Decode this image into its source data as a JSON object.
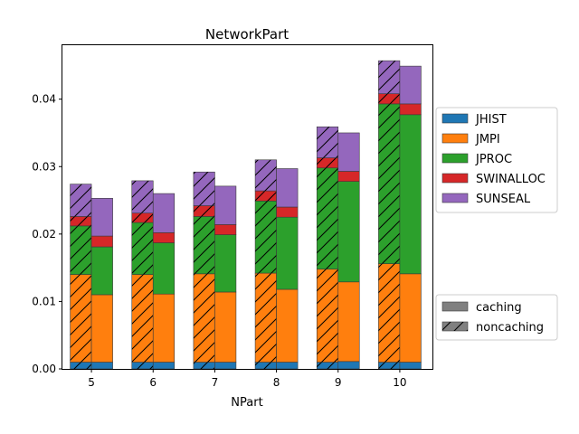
{
  "chart_data": {
    "type": "bar",
    "stacked": true,
    "grouped": true,
    "title": "NetworkPart",
    "xlabel": "NPart",
    "ylabel": "",
    "categories": [
      "5",
      "6",
      "7",
      "8",
      "9",
      "10"
    ],
    "ylim": [
      0,
      0.048
    ],
    "yticks": [
      "0.00",
      "0.01",
      "0.02",
      "0.03",
      "0.04"
    ],
    "legend_placement": "right, outside plot",
    "groups": [
      {
        "name": "noncaching",
        "hatched": true,
        "series": [
          {
            "name": "JHIST",
            "values": [
              0.001,
              0.001,
              0.001,
              0.001,
              0.001,
              0.001
            ]
          },
          {
            "name": "JMPI",
            "values": [
              0.013,
              0.013,
              0.0131,
              0.0132,
              0.0138,
              0.0146
            ]
          },
          {
            "name": "JPROC",
            "values": [
              0.0072,
              0.0077,
              0.0085,
              0.0107,
              0.015,
              0.0237
            ]
          },
          {
            "name": "SWINALLOC",
            "values": [
              0.0014,
              0.0014,
              0.0016,
              0.0015,
              0.0015,
              0.0015
            ]
          },
          {
            "name": "SUNSEAL",
            "values": [
              0.0048,
              0.0048,
              0.005,
              0.0046,
              0.0046,
              0.0049
            ]
          }
        ]
      },
      {
        "name": "caching",
        "hatched": false,
        "series": [
          {
            "name": "JHIST",
            "values": [
              0.001,
              0.001,
              0.001,
              0.001,
              0.0011,
              0.001
            ]
          },
          {
            "name": "JMPI",
            "values": [
              0.01,
              0.0101,
              0.0104,
              0.0108,
              0.0118,
              0.0131
            ]
          },
          {
            "name": "JPROC",
            "values": [
              0.0071,
              0.0076,
              0.0085,
              0.0107,
              0.0149,
              0.0236
            ]
          },
          {
            "name": "SWINALLOC",
            "values": [
              0.0016,
              0.0015,
              0.0015,
              0.0015,
              0.0015,
              0.0016
            ]
          },
          {
            "name": "SUNSEAL",
            "values": [
              0.0056,
              0.0058,
              0.0057,
              0.0057,
              0.0057,
              0.0056
            ]
          }
        ]
      }
    ],
    "series_colors": {
      "JHIST": "#1f77b4",
      "JMPI": "#ff7f0e",
      "JPROC": "#2ca02c",
      "SWINALLOC": "#d62728",
      "SUNSEAL": "#9467bd"
    },
    "legend_series": [
      "JHIST",
      "JMPI",
      "JPROC",
      "SWINALLOC",
      "SUNSEAL"
    ],
    "legend_patterns": [
      "caching",
      "noncaching"
    ]
  }
}
